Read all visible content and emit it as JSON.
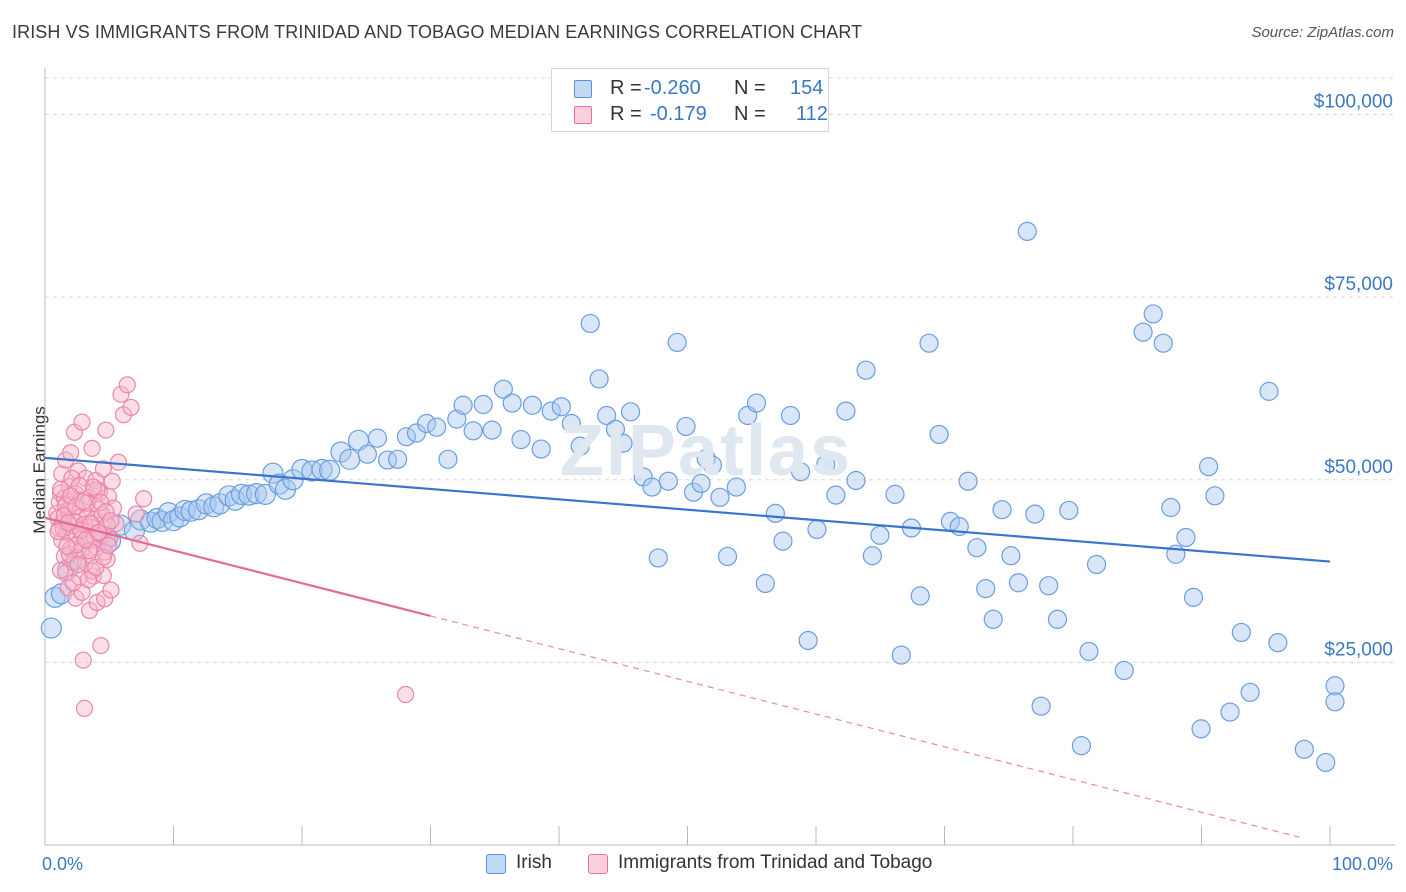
{
  "title": "IRISH VS IMMIGRANTS FROM TRINIDAD AND TOBAGO MEDIAN EARNINGS CORRELATION CHART",
  "source": "Source: ZipAtlas.com",
  "watermark": "ZIPatlas",
  "legend": {
    "rows": [
      {
        "r_label": "R =",
        "r_value": "-0.260",
        "n_label": "N =",
        "n_value": "154",
        "color": "#a8c8f0",
        "edge": "#5a90d8"
      },
      {
        "r_label": "R =",
        "r_value": "-0.179",
        "n_label": "N =",
        "n_value": "112",
        "color": "#f7b8cc",
        "edge": "#e87099"
      }
    ]
  },
  "bottom_legend": [
    {
      "label": "Irish",
      "color": "#a8c8f0",
      "edge": "#5a90d8"
    },
    {
      "label": "Immigrants from Trinidad and Tobago",
      "color": "#f7b8cc",
      "edge": "#e87099"
    }
  ],
  "chart_data": {
    "type": "scatter",
    "ylabel": "Median Earnings",
    "xlabel": "",
    "xlim": [
      0,
      100
    ],
    "ylim": [
      0,
      105000
    ],
    "x_tick_labels": {
      "left": "0.0%",
      "right": "100.0%"
    },
    "y_ticks": [
      {
        "value": 25000,
        "label": "$25,000"
      },
      {
        "value": 50000,
        "label": "$50,000"
      },
      {
        "value": 75000,
        "label": "$75,000"
      },
      {
        "value": 100000,
        "label": "$100,000"
      }
    ],
    "grid": "horizontal dashed",
    "legend_position": "top-center",
    "series": [
      {
        "name": "Irish",
        "color": "#a8c8f0",
        "edge": "#5a90d8",
        "trend": {
          "x": [
            0,
            100
          ],
          "y": [
            53000,
            38800
          ],
          "dashed_from": null
        },
        "points": [
          [
            0.5,
            29700
          ],
          [
            0.8,
            33900
          ],
          [
            1.3,
            34400
          ],
          [
            1.8,
            37700
          ],
          [
            2.5,
            39100
          ],
          [
            4.8,
            41700
          ],
          [
            5.2,
            41600
          ],
          [
            6,
            43800
          ],
          [
            7.1,
            43000
          ],
          [
            7.6,
            44500
          ],
          [
            8.4,
            44200
          ],
          [
            8.9,
            44700
          ],
          [
            9.3,
            44300
          ],
          [
            9.8,
            45500
          ],
          [
            10.2,
            44400
          ],
          [
            10.7,
            44900
          ],
          [
            11.1,
            45800
          ],
          [
            11.6,
            45700
          ],
          [
            12.2,
            45900
          ],
          [
            12.8,
            46700
          ],
          [
            13.4,
            46300
          ],
          [
            13.9,
            46700
          ],
          [
            14.6,
            47800
          ],
          [
            15.1,
            47200
          ],
          [
            15.6,
            48000
          ],
          [
            16.2,
            47900
          ],
          [
            16.8,
            48100
          ],
          [
            17.5,
            48000
          ],
          [
            18.1,
            50900
          ],
          [
            18.6,
            49400
          ],
          [
            19.1,
            48700
          ],
          [
            19.7,
            50000
          ],
          [
            20.4,
            51400
          ],
          [
            21.2,
            51200
          ],
          [
            22.0,
            51400
          ],
          [
            22.6,
            51300
          ],
          [
            23.5,
            53800
          ],
          [
            24.2,
            52800
          ],
          [
            24.9,
            55400
          ],
          [
            25.6,
            53500
          ],
          [
            26.4,
            55700
          ],
          [
            27.2,
            52700
          ],
          [
            28.0,
            52800
          ],
          [
            28.7,
            55900
          ],
          [
            29.5,
            56400
          ],
          [
            30.3,
            57700
          ],
          [
            31.1,
            57200
          ],
          [
            32.0,
            52800
          ],
          [
            32.7,
            58300
          ],
          [
            33.2,
            60200
          ],
          [
            34.0,
            56700
          ],
          [
            34.8,
            60300
          ],
          [
            35.5,
            56800
          ],
          [
            36.4,
            62400
          ],
          [
            37.1,
            60500
          ],
          [
            37.8,
            55500
          ],
          [
            38.7,
            60200
          ],
          [
            39.4,
            54200
          ],
          [
            40.2,
            59400
          ],
          [
            41.0,
            60000
          ],
          [
            41.8,
            57700
          ],
          [
            42.5,
            54600
          ],
          [
            43.3,
            71400
          ],
          [
            44.0,
            63800
          ],
          [
            44.6,
            58800
          ],
          [
            45.3,
            56900
          ],
          [
            45.9,
            55000
          ],
          [
            46.5,
            59300
          ],
          [
            47.5,
            50400
          ],
          [
            48.2,
            49000
          ],
          [
            48.7,
            39300
          ],
          [
            49.5,
            49800
          ],
          [
            50.2,
            68800
          ],
          [
            50.9,
            57300
          ],
          [
            51.5,
            48300
          ],
          [
            52.1,
            49500
          ],
          [
            52.5,
            52900
          ],
          [
            53.0,
            52000
          ],
          [
            53.6,
            47600
          ],
          [
            54.2,
            39500
          ],
          [
            54.9,
            49000
          ],
          [
            55.8,
            58800
          ],
          [
            56.5,
            60500
          ],
          [
            57.2,
            35800
          ],
          [
            58.0,
            45400
          ],
          [
            58.6,
            41600
          ],
          [
            59.2,
            58800
          ],
          [
            60.0,
            51100
          ],
          [
            60.6,
            28000
          ],
          [
            61.3,
            43200
          ],
          [
            62.0,
            52100
          ],
          [
            62.8,
            47900
          ],
          [
            63.6,
            59400
          ],
          [
            64.4,
            49900
          ],
          [
            65.2,
            65000
          ],
          [
            65.7,
            39600
          ],
          [
            66.3,
            42400
          ],
          [
            67.5,
            48000
          ],
          [
            68.0,
            26000
          ],
          [
            68.8,
            43400
          ],
          [
            69.5,
            34100
          ],
          [
            70.2,
            68700
          ],
          [
            71.0,
            56200
          ],
          [
            71.9,
            44300
          ],
          [
            72.6,
            43600
          ],
          [
            73.3,
            49800
          ],
          [
            74.0,
            40700
          ],
          [
            74.7,
            35100
          ],
          [
            75.3,
            30900
          ],
          [
            76.0,
            45900
          ],
          [
            76.7,
            39600
          ],
          [
            77.3,
            35900
          ],
          [
            78.0,
            84000
          ],
          [
            78.6,
            45300
          ],
          [
            79.1,
            19000
          ],
          [
            79.7,
            35500
          ],
          [
            80.4,
            30900
          ],
          [
            81.3,
            45800
          ],
          [
            82.3,
            13600
          ],
          [
            82.9,
            26500
          ],
          [
            83.5,
            38400
          ],
          [
            85.7,
            23900
          ],
          [
            87.2,
            70200
          ],
          [
            88.0,
            72700
          ],
          [
            88.8,
            68700
          ],
          [
            89.4,
            46200
          ],
          [
            89.8,
            39800
          ],
          [
            90.6,
            42100
          ],
          [
            91.2,
            33900
          ],
          [
            91.8,
            15900
          ],
          [
            92.4,
            51800
          ],
          [
            92.9,
            47800
          ],
          [
            94.1,
            18200
          ],
          [
            95.0,
            29100
          ],
          [
            95.7,
            20900
          ],
          [
            97.2,
            62100
          ],
          [
            97.9,
            27700
          ],
          [
            100.0,
            13100
          ],
          [
            101.7,
            11300
          ],
          [
            102.5,
            21800
          ],
          [
            105.0,
            19600
          ]
        ],
        "sizes_note": "larger markers near left cluster"
      },
      {
        "name": "Immigrants from Trinidad and Tobago",
        "color": "#f7b8cc",
        "edge": "#e87099",
        "trend": {
          "x": [
            0,
            100
          ],
          "y": [
            44800,
            0
          ],
          "solid_until_x": 30
        },
        "points": [
          [
            0.3,
            45400
          ],
          [
            0.4,
            44700
          ],
          [
            0.5,
            46900
          ],
          [
            0.5,
            43300
          ],
          [
            0.6,
            48200
          ],
          [
            0.7,
            50800
          ],
          [
            0.7,
            41700
          ],
          [
            0.8,
            44200
          ],
          [
            0.9,
            39500
          ],
          [
            0.9,
            47500
          ],
          [
            1.0,
            37200
          ],
          [
            1.0,
            52700
          ],
          [
            1.1,
            42800
          ],
          [
            1.2,
            45800
          ],
          [
            1.2,
            35200
          ],
          [
            1.3,
            49100
          ],
          [
            1.4,
            40500
          ],
          [
            1.4,
            53700
          ],
          [
            1.5,
            46600
          ],
          [
            1.6,
            43700
          ],
          [
            1.6,
            38700
          ],
          [
            1.7,
            56500
          ],
          [
            1.8,
            48100
          ],
          [
            1.8,
            33800
          ],
          [
            1.9,
            42300
          ],
          [
            2.0,
            51200
          ],
          [
            2.0,
            44800
          ],
          [
            2.1,
            36700
          ],
          [
            2.2,
            40200
          ],
          [
            2.2,
            47200
          ],
          [
            2.3,
            57900
          ],
          [
            2.4,
            25300
          ],
          [
            2.4,
            42100
          ],
          [
            2.5,
            18700
          ],
          [
            2.6,
            50200
          ],
          [
            2.6,
            38700
          ],
          [
            2.7,
            45000
          ],
          [
            2.8,
            41600
          ],
          [
            2.9,
            32100
          ],
          [
            2.9,
            47600
          ],
          [
            3.0,
            43500
          ],
          [
            3.1,
            39600
          ],
          [
            3.1,
            54300
          ],
          [
            3.2,
            36800
          ],
          [
            3.3,
            42100
          ],
          [
            3.4,
            49900
          ],
          [
            3.5,
            40700
          ],
          [
            3.5,
            33200
          ],
          [
            3.6,
            45900
          ],
          [
            3.7,
            48300
          ],
          [
            3.8,
            27300
          ],
          [
            3.9,
            42400
          ],
          [
            4.0,
            36900
          ],
          [
            4.0,
            51500
          ],
          [
            4.1,
            33700
          ],
          [
            4.2,
            56800
          ],
          [
            4.3,
            39100
          ],
          [
            4.4,
            47700
          ],
          [
            4.5,
            42000
          ],
          [
            4.6,
            34900
          ],
          [
            4.7,
            49800
          ],
          [
            4.8,
            46100
          ],
          [
            5.0,
            44000
          ],
          [
            5.2,
            52400
          ],
          [
            5.4,
            61700
          ],
          [
            5.6,
            58900
          ],
          [
            5.9,
            63000
          ],
          [
            6.2,
            59900
          ],
          [
            6.6,
            45300
          ],
          [
            6.9,
            41300
          ],
          [
            7.2,
            47400
          ],
          [
            0.6,
            37600
          ],
          [
            0.8,
            43300
          ],
          [
            1.0,
            46500
          ],
          [
            1.3,
            39800
          ],
          [
            1.5,
            50200
          ],
          [
            1.7,
            44300
          ],
          [
            1.9,
            41100
          ],
          [
            2.1,
            49200
          ],
          [
            2.3,
            34600
          ],
          [
            2.5,
            43900
          ],
          [
            2.7,
            46800
          ],
          [
            2.9,
            40300
          ],
          [
            3.1,
            37500
          ],
          [
            3.3,
            44600
          ],
          [
            3.5,
            48600
          ],
          [
            3.7,
            42700
          ],
          [
            3.9,
            45200
          ],
          [
            4.1,
            40100
          ],
          [
            4.3,
            43800
          ],
          [
            0.4,
            42900
          ],
          [
            0.6,
            48700
          ],
          [
            0.9,
            45100
          ],
          [
            1.1,
            40900
          ],
          [
            1.4,
            47800
          ],
          [
            1.6,
            35900
          ],
          [
            1.8,
            46300
          ],
          [
            2.0,
            38400
          ],
          [
            2.2,
            43100
          ],
          [
            2.4,
            47000
          ],
          [
            2.6,
            41800
          ],
          [
            2.8,
            36300
          ],
          [
            3.0,
            44000
          ],
          [
            3.2,
            49000
          ],
          [
            3.4,
            38000
          ],
          [
            3.6,
            42800
          ],
          [
            3.8,
            46900
          ],
          [
            4.0,
            39400
          ],
          [
            4.2,
            45600
          ],
          [
            4.4,
            41000
          ],
          [
            4.6,
            44400
          ],
          [
            28.0,
            20600
          ],
          [
            1.2,
            44100
          ]
        ]
      }
    ]
  }
}
